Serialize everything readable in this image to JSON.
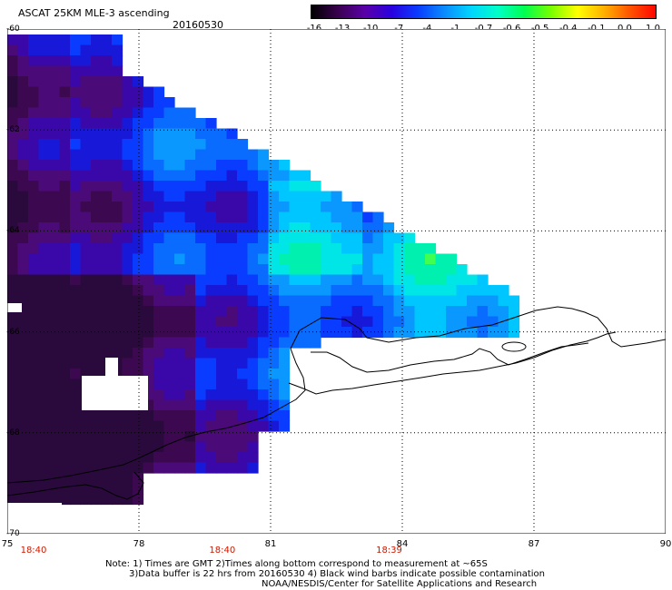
{
  "header": {
    "title": "ASCAT 25KM MLE-3 ascending",
    "date": "20160530"
  },
  "colorbar": {
    "labels": [
      "-16",
      "-13",
      "-10",
      "-7",
      "-4",
      "-1",
      "-0.7",
      "-0.6",
      "-0.5",
      "-0.4",
      "-0.1",
      "0.0",
      "1.0"
    ],
    "colors": [
      "#000000",
      "#3a004f",
      "#5a00a8",
      "#2a00e0",
      "#0a3cff",
      "#0a8cff",
      "#00d6ff",
      "#00ffc8",
      "#00ff50",
      "#78ff00",
      "#ffff00",
      "#ffb000",
      "#ff5000",
      "#ff0000"
    ]
  },
  "map": {
    "y_labels": [
      "-60",
      "-62",
      "-64",
      "-66",
      "-68",
      "-70"
    ],
    "x_labels": [
      "75",
      "78",
      "81",
      "84",
      "87",
      "90"
    ],
    "time_labels": [
      "18:40",
      "18:40",
      "18:39"
    ],
    "extent": {
      "lon": [
        75,
        90
      ],
      "lat": [
        -70,
        -60
      ]
    },
    "grid": "dotted",
    "coastline_color": "#000000"
  },
  "footer": {
    "note1": "Note: 1) Times are GMT 2)Times along bottom correspond to measurement at ~65S",
    "note2": "3)Data buffer is 22 hrs from 20160530 4) Black wind barbs indicate possible contamination",
    "note3": "NOAA/NESDIS/Center for Satellite Applications and Research"
  }
}
